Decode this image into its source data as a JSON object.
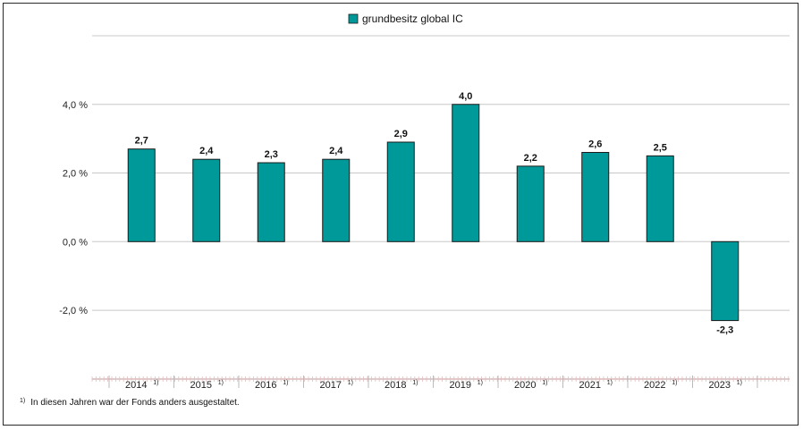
{
  "chart_data": {
    "type": "bar",
    "categories": [
      "2014",
      "2015",
      "2016",
      "2017",
      "2018",
      "2019",
      "2020",
      "2021",
      "2022",
      "2023"
    ],
    "category_footnote_mark": "1)",
    "series": [
      {
        "name": "grundbesitz global IC",
        "values": [
          2.7,
          2.4,
          2.3,
          2.4,
          2.9,
          4.0,
          2.2,
          2.6,
          2.5,
          -2.3
        ],
        "value_labels": [
          "2,7",
          "2,4",
          "2,3",
          "2,4",
          "2,9",
          "4,0",
          "2,2",
          "2,6",
          "2,5",
          "-2,3"
        ],
        "color": "#009999"
      }
    ],
    "y_ticks": [
      4.0,
      2.0,
      0.0,
      -2.0
    ],
    "y_tick_labels": [
      "4,0 %",
      "2,0 %",
      "0,0 %",
      "-2,0 %"
    ],
    "ylim": [
      -3.9,
      6.0
    ],
    "grid": true,
    "legend_position": "top-center",
    "bar_outline_color": "#1a1a1a",
    "grid_color": "#c8c8c8"
  },
  "footnote": {
    "mark": "1)",
    "text": "In diesen Jahren war der Fonds anders ausgestaltet."
  }
}
